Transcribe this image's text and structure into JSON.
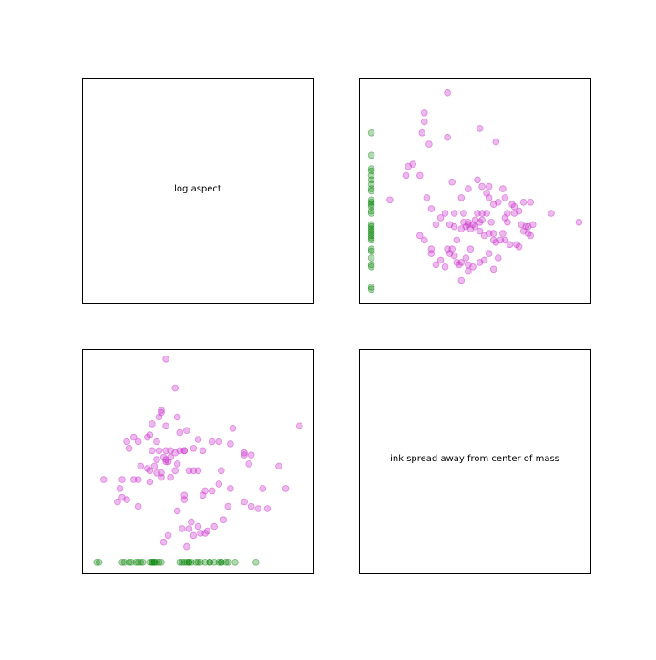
{
  "colors": {
    "background": "#ffffff",
    "magenta": "#cc33cc",
    "green": "#008000",
    "frame": "#000000"
  },
  "chart_data": [
    {
      "type": "text",
      "panel": "top-left",
      "text": "log aspect",
      "axes_ticks": false
    },
    {
      "type": "scatter",
      "panel": "top-right",
      "axes_ticks": false,
      "xlim": [
        0,
        100
      ],
      "ylim": [
        0,
        100
      ],
      "series": [
        {
          "color": "#cc33cc",
          "alpha": 0.35,
          "points": [
            [
              38,
              94
            ],
            [
              28,
              85
            ],
            [
              28,
              81
            ],
            [
              52,
              78
            ],
            [
              27,
              76
            ],
            [
              38,
              74
            ],
            [
              59,
              72
            ],
            [
              30,
              71
            ],
            [
              23,
              62
            ],
            [
              21,
              61
            ],
            [
              20,
              57
            ],
            [
              26,
              57
            ],
            [
              40,
              54
            ],
            [
              51,
              55
            ],
            [
              56,
              47
            ],
            [
              63,
              47
            ],
            [
              47,
              51
            ],
            [
              53,
              52
            ],
            [
              56,
              52
            ],
            [
              62,
              51
            ],
            [
              55,
              49
            ],
            [
              58,
              44
            ],
            [
              60,
              45
            ],
            [
              66,
              44
            ],
            [
              71,
              45
            ],
            [
              74,
              45
            ],
            [
              67,
              40
            ],
            [
              63,
              38
            ],
            [
              69,
              41
            ],
            [
              67,
              43
            ],
            [
              44,
              47
            ],
            [
              45,
              40
            ],
            [
              51,
              40
            ],
            [
              55,
              40
            ],
            [
              64,
              40
            ],
            [
              31,
              42
            ],
            [
              29,
              47
            ],
            [
              13,
              46
            ],
            [
              37,
              40
            ],
            [
              41,
              40
            ],
            [
              45,
              36
            ],
            [
              47,
              36
            ],
            [
              53,
              37
            ],
            [
              57,
              36
            ],
            [
              58,
              31
            ],
            [
              62,
              31
            ],
            [
              64,
              36
            ],
            [
              70,
              35
            ],
            [
              73,
              34
            ],
            [
              75,
              35
            ],
            [
              83,
              40
            ],
            [
              95,
              36
            ],
            [
              39,
              35
            ],
            [
              41,
              34
            ],
            [
              42,
              28
            ],
            [
              44,
              33
            ],
            [
              46,
              34
            ],
            [
              47,
              35
            ],
            [
              48,
              33
            ],
            [
              49,
              35
            ],
            [
              50,
              34
            ],
            [
              50,
              37
            ],
            [
              52,
              36
            ],
            [
              52,
              32
            ],
            [
              54,
              30
            ],
            [
              56,
              31
            ],
            [
              58,
              28
            ],
            [
              59,
              27
            ],
            [
              61,
              28
            ],
            [
              63,
              28
            ],
            [
              65,
              26
            ],
            [
              68,
              26
            ],
            [
              69,
              25
            ],
            [
              71,
              32
            ],
            [
              72,
              34
            ],
            [
              73,
              31
            ],
            [
              74,
              30
            ],
            [
              53,
              40
            ],
            [
              35,
              38
            ],
            [
              33,
              35
            ],
            [
              31,
              24
            ],
            [
              38,
              24
            ],
            [
              40,
              24
            ],
            [
              41,
              21
            ],
            [
              42,
              18
            ],
            [
              43,
              17
            ],
            [
              44,
              18
            ],
            [
              46,
              20
            ],
            [
              47,
              17
            ],
            [
              49,
              16
            ],
            [
              52,
              18
            ],
            [
              54,
              19
            ],
            [
              56,
              22
            ],
            [
              58,
              15
            ],
            [
              44,
              10
            ],
            [
              37,
              16
            ],
            [
              33,
              17
            ],
            [
              31,
              22
            ],
            [
              28,
              28
            ],
            [
              26,
              30
            ],
            [
              39,
              22
            ],
            [
              47,
              14
            ],
            [
              60,
              20
            ],
            [
              35,
              19
            ],
            [
              48,
              24
            ]
          ]
        },
        {
          "color": "#008000",
          "alpha": 0.3,
          "points": [
            [
              5,
              76
            ],
            [
              5,
              66
            ],
            [
              5,
              60
            ],
            [
              5,
              59
            ],
            [
              5,
              57
            ],
            [
              5,
              55
            ],
            [
              5,
              53
            ],
            [
              5,
              51
            ],
            [
              5,
              50
            ],
            [
              5,
              46
            ],
            [
              5,
              45
            ],
            [
              5,
              44
            ],
            [
              5,
              43
            ],
            [
              5,
              41
            ],
            [
              5,
              40
            ],
            [
              5,
              35
            ],
            [
              5,
              34
            ],
            [
              5,
              33
            ],
            [
              5,
              32
            ],
            [
              5,
              31
            ],
            [
              5,
              30
            ],
            [
              5,
              29
            ],
            [
              5,
              28
            ],
            [
              5,
              24
            ],
            [
              5,
              23
            ],
            [
              5,
              20
            ],
            [
              5,
              17
            ],
            [
              5,
              16
            ],
            [
              5,
              7
            ],
            [
              5,
              6
            ]
          ]
        }
      ]
    },
    {
      "type": "scatter",
      "panel": "bottom-left",
      "axes_ticks": false,
      "xlim": [
        0,
        100
      ],
      "ylim": [
        0,
        100
      ],
      "series": [
        {
          "color": "#cc33cc",
          "alpha": 0.35,
          "points": [
            [
              36,
              96
            ],
            [
              40,
              83
            ],
            [
              34,
              72
            ],
            [
              34,
              73
            ],
            [
              33,
              70
            ],
            [
              41,
              70
            ],
            [
              30,
              67
            ],
            [
              36,
              66
            ],
            [
              45,
              64
            ],
            [
              42,
              63
            ],
            [
              22,
              61
            ],
            [
              29,
              62
            ],
            [
              28,
              61
            ],
            [
              50,
              60
            ],
            [
              56,
              59
            ],
            [
              20,
              56
            ],
            [
              19,
              59
            ],
            [
              24,
              59
            ],
            [
              32,
              59
            ],
            [
              44,
              55
            ],
            [
              48,
              56
            ],
            [
              52,
              55
            ],
            [
              30,
              55
            ],
            [
              33,
              55
            ],
            [
              36,
              55
            ],
            [
              38,
              55
            ],
            [
              42,
              55
            ],
            [
              44,
              55
            ],
            [
              38,
              52
            ],
            [
              40,
              54
            ],
            [
              35,
              52
            ],
            [
              36,
              51
            ],
            [
              36,
              50
            ],
            [
              37,
              50
            ],
            [
              41,
              49
            ],
            [
              32,
              51
            ],
            [
              31,
              48
            ],
            [
              28,
              47
            ],
            [
              25,
              48
            ],
            [
              29,
              46
            ],
            [
              32,
              45
            ],
            [
              34,
              45
            ],
            [
              34,
              43
            ],
            [
              38,
              43
            ],
            [
              40,
              46
            ],
            [
              46,
              46
            ],
            [
              48,
              46
            ],
            [
              50,
              46
            ],
            [
              59,
              59
            ],
            [
              64,
              58
            ],
            [
              65,
              65
            ],
            [
              70,
              54
            ],
            [
              70,
              53
            ],
            [
              73,
              53
            ],
            [
              72,
              49
            ],
            [
              60,
              46
            ],
            [
              59,
              40
            ],
            [
              53,
              37
            ],
            [
              56,
              37
            ],
            [
              52,
              35
            ],
            [
              44,
              35
            ],
            [
              44,
              33
            ],
            [
              29,
              41
            ],
            [
              24,
              42
            ],
            [
              22,
              42
            ],
            [
              17,
              42
            ],
            [
              16,
              38
            ],
            [
              9,
              42
            ],
            [
              17,
              34
            ],
            [
              19,
              33
            ],
            [
              24,
              30
            ],
            [
              15,
              32
            ],
            [
              41,
              28
            ],
            [
              47,
              23
            ],
            [
              50,
              21
            ],
            [
              46,
              20
            ],
            [
              43,
              20
            ],
            [
              37,
              17
            ],
            [
              35,
              14
            ],
            [
              45,
              12
            ],
            [
              48,
              17
            ],
            [
              51,
              18
            ],
            [
              53,
              18
            ],
            [
              54,
              19
            ],
            [
              57,
              21
            ],
            [
              61,
              24
            ],
            [
              63,
              30
            ],
            [
              64,
              38
            ],
            [
              70,
              32
            ],
            [
              73,
              30
            ],
            [
              76,
              29
            ],
            [
              80,
              29
            ],
            [
              78,
              38
            ],
            [
              85,
              48
            ],
            [
              88,
              38
            ],
            [
              94,
              66
            ]
          ]
        },
        {
          "color": "#008000",
          "alpha": 0.3,
          "points": [
            [
              6,
              5
            ],
            [
              7,
              5
            ],
            [
              17,
              5
            ],
            [
              18,
              5
            ],
            [
              20,
              5
            ],
            [
              21,
              5
            ],
            [
              23,
              5
            ],
            [
              24,
              5
            ],
            [
              25,
              5
            ],
            [
              26,
              5
            ],
            [
              29,
              5
            ],
            [
              30,
              5
            ],
            [
              30,
              5
            ],
            [
              31,
              5
            ],
            [
              31,
              5
            ],
            [
              32,
              5
            ],
            [
              33,
              5
            ],
            [
              34,
              5
            ],
            [
              42,
              5
            ],
            [
              43,
              5
            ],
            [
              44,
              5
            ],
            [
              45,
              5
            ],
            [
              46,
              5
            ],
            [
              46,
              5
            ],
            [
              47,
              5
            ],
            [
              49,
              5
            ],
            [
              50,
              5
            ],
            [
              51,
              5
            ],
            [
              53,
              5
            ],
            [
              55,
              5
            ],
            [
              55,
              5
            ],
            [
              57,
              5
            ],
            [
              59,
              5
            ],
            [
              60,
              5
            ],
            [
              60,
              5
            ],
            [
              62,
              5
            ],
            [
              63,
              5
            ],
            [
              66,
              5
            ],
            [
              75,
              5
            ]
          ]
        }
      ]
    },
    {
      "type": "text",
      "panel": "bottom-right",
      "text": "ink spread away from center of mass",
      "axes_ticks": false
    }
  ]
}
